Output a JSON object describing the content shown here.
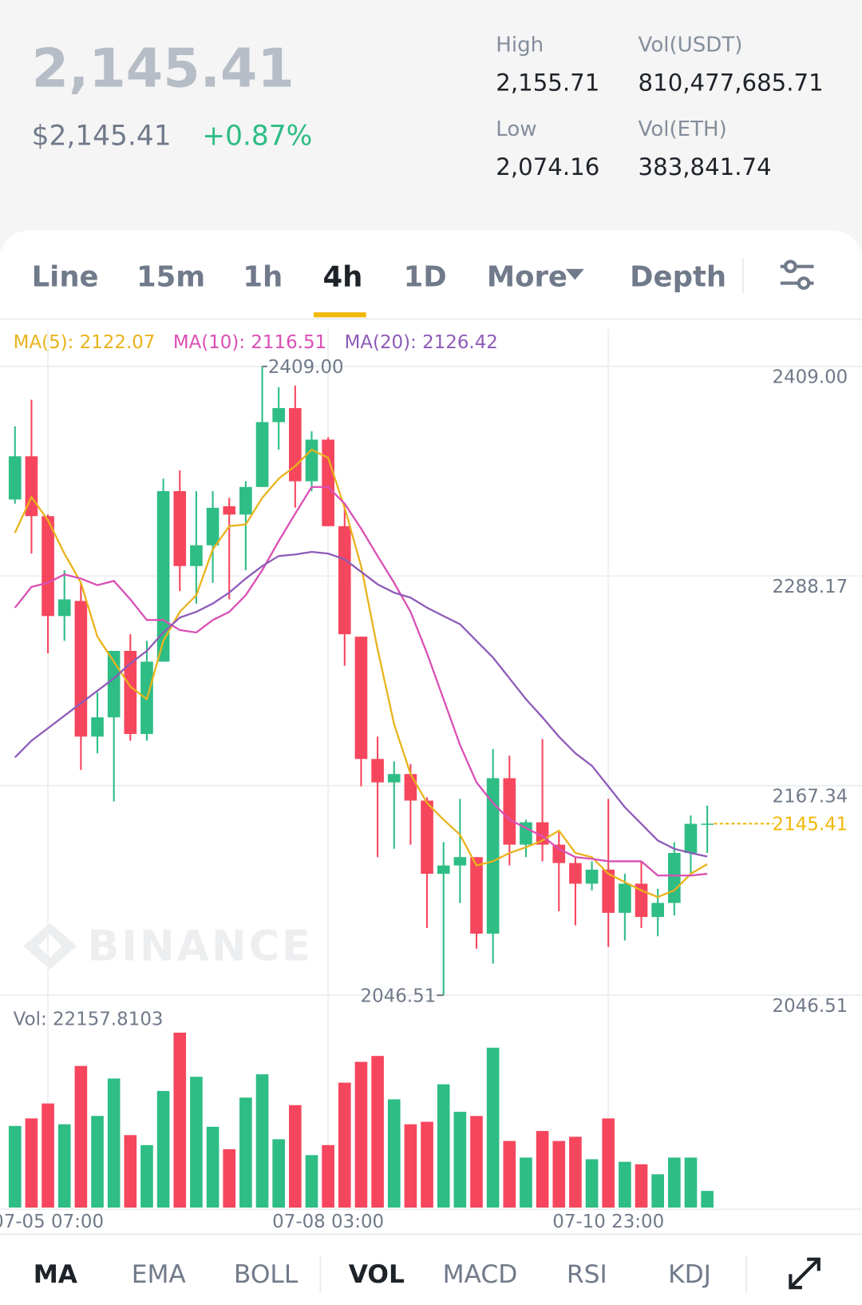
{
  "header": {
    "last_price": "2,145.41",
    "usd_price": "$2,145.41",
    "change": "+0.87%",
    "stats": [
      {
        "label": "High",
        "value": "2,155.71"
      },
      {
        "label": "Vol(USDT)",
        "value": "810,477,685.71"
      },
      {
        "label": "Low",
        "value": "2,074.16"
      },
      {
        "label": "Vol(ETH)",
        "value": "383,841.74"
      }
    ]
  },
  "tabs": [
    "Line",
    "15m",
    "1h",
    "4h",
    "1D",
    "More",
    "Depth"
  ],
  "active_tab": 3,
  "chart_data": {
    "type": "candlestick",
    "categories": [
      null,
      null,
      "07-05 07:00",
      null,
      null,
      null,
      null,
      null,
      null,
      null,
      null,
      null,
      null,
      null,
      null,
      null,
      null,
      null,
      null,
      "07-08 03:00",
      null,
      null,
      null,
      null,
      null,
      null,
      null,
      null,
      null,
      null,
      null,
      null,
      null,
      null,
      null,
      null,
      "07-10 23:00",
      null,
      null,
      null,
      null,
      null,
      null
    ],
    "open": [
      2332.3,
      2357.2,
      2322.7,
      2265.1,
      2273.8,
      2195.6,
      2206.7,
      2245.0,
      2197.1,
      2238.8,
      2337.1,
      2293.9,
      2305.9,
      2328.4,
      2323.6,
      2339.5,
      2376.9,
      2385.0,
      2342.8,
      2366.8,
      2316.9,
      2253.2,
      2182.7,
      2169.2,
      2174.0,
      2158.7,
      2116.5,
      2121.3,
      2126.1,
      2082.0,
      2171.6,
      2133.3,
      2146.2,
      2133.3,
      2122.7,
      2110.8,
      2118.9,
      2094.0,
      2110.8,
      2091.6,
      2099.7,
      2128.5,
      2145.3
    ],
    "high": [
      2374.5,
      2389.8,
      2323.6,
      2291.5,
      2284.3,
      2221.0,
      2245.0,
      2254.6,
      2250.8,
      2344.3,
      2349.1,
      2337.1,
      2337.1,
      2333.2,
      2342.8,
      2409.0,
      2397.0,
      2398.0,
      2371.6,
      2368.2,
      2329.9,
      2253.2,
      2195.6,
      2181.2,
      2179.8,
      2160.6,
      2134.7,
      2159.7,
      2126.1,
      2188.4,
      2184.6,
      2147.7,
      2194.2,
      2140.5,
      2126.1,
      2123.7,
      2159.7,
      2116.5,
      2123.7,
      2107.9,
      2134.7,
      2150.1,
      2155.8
    ],
    "low": [
      2329.9,
      2301.1,
      2243.6,
      2250.8,
      2176.4,
      2186.0,
      2158.2,
      2193.2,
      2193.2,
      2238.8,
      2279.5,
      2272.3,
      2284.3,
      2274.7,
      2291.5,
      2339.5,
      2361.0,
      2327.5,
      2337.1,
      2316.9,
      2236.4,
      2166.9,
      2126.1,
      2130.9,
      2133.3,
      2085.3,
      2046.51,
      2099.7,
      2073.3,
      2064.7,
      2121.3,
      2126.1,
      2123.7,
      2094.9,
      2086.8,
      2106.9,
      2074.3,
      2078.1,
      2085.3,
      2080.5,
      2092.5,
      2116.5,
      2128.5
    ],
    "close": [
      2357.2,
      2322.7,
      2265.1,
      2274.7,
      2195.6,
      2206.7,
      2245.0,
      2197.1,
      2238.8,
      2337.1,
      2293.9,
      2305.9,
      2327.5,
      2323.6,
      2339.5,
      2376.9,
      2385.0,
      2342.8,
      2366.8,
      2316.9,
      2254.6,
      2182.7,
      2169.2,
      2174.0,
      2158.7,
      2116.5,
      2121.3,
      2126.1,
      2082.0,
      2171.6,
      2133.3,
      2146.2,
      2133.3,
      2122.7,
      2110.8,
      2118.9,
      2094.0,
      2110.8,
      2091.6,
      2099.7,
      2128.5,
      2145.3,
      2145.41
    ],
    "volumes": [
      108600,
      118600,
      138500,
      110800,
      188400,
      121900,
      171700,
      96400,
      83100,
      155100,
      232700,
      174000,
      107500,
      77600,
      146300,
      177300,
      90900,
      136300,
      69800,
      83100,
      166200,
      193900,
      201700,
      144000,
      110800,
      114100,
      164000,
      127400,
      121900,
      212700,
      88600,
      66500,
      101900,
      88600,
      94200,
      64300,
      118600,
      60900,
      57600,
      44300,
      66500,
      66500,
      22157.8103
    ],
    "volume_name": "Vol:",
    "volume_ylim": [
      0,
      265920
    ],
    "series": [
      {
        "name": "MA(5):",
        "color": "#e9b31c",
        "values": [
          2313.1,
          2333.7,
          2320.3,
          2301.1,
          2284.3,
          2253.2,
          2238.8,
          2224.4,
          2217.2,
          2250.8,
          2267.5,
          2277.1,
          2303.5,
          2316.9,
          2317.9,
          2333.2,
          2344.3,
          2351.5,
          2361.0,
          2356.3,
          2327.5,
          2293.9,
          2246.0,
          2202.8,
          2174.0,
          2157.3,
          2147.7,
          2139.0,
          2121.3,
          2123.7,
          2128.5,
          2131.8,
          2135.7,
          2141.4,
          2128.5,
          2126.1,
          2116.5,
          2111.7,
          2106.9,
          2103.1,
          2106.9,
          2116.5,
          2122.07
        ]
      },
      {
        "name": "MA(10):",
        "color": "#d94fb4",
        "values": [
          2269.9,
          2281.9,
          2284.3,
          2289.1,
          2286.7,
          2282.9,
          2285.3,
          2274.7,
          2262.8,
          2262.8,
          2257.0,
          2255.6,
          2262.8,
          2267.5,
          2277.1,
          2291.5,
          2308.3,
          2324.1,
          2339.5,
          2339.5,
          2329.9,
          2315.5,
          2299.7,
          2284.3,
          2267.5,
          2243.6,
          2217.2,
          2190.8,
          2169.2,
          2157.3,
          2147.7,
          2142.9,
          2138.1,
          2130.9,
          2126.1,
          2125.1,
          2123.7,
          2123.7,
          2123.7,
          2115.5,
          2115.5,
          2115.5,
          2116.51
        ]
      },
      {
        "name": "MA(20):",
        "color": "#8e5bb8",
        "values": [
          2183.6,
          2193.2,
          2200.4,
          2207.6,
          2214.8,
          2222.0,
          2229.2,
          2237.8,
          2245.0,
          2255.6,
          2264.2,
          2267.5,
          2272.3,
          2278.6,
          2286.7,
          2293.9,
          2299.7,
          2300.6,
          2302.1,
          2301.1,
          2297.8,
          2290.6,
          2283.4,
          2278.6,
          2275.7,
          2269.9,
          2265.1,
          2260.4,
          2250.8,
          2241.2,
          2229.2,
          2217.2,
          2206.7,
          2195.6,
          2186.0,
          2178.8,
          2166.9,
          2154.9,
          2145.3,
          2135.7,
          2130.9,
          2128.5,
          2126.42
        ]
      }
    ],
    "ylim": [
      2046.51,
      2430.6
    ],
    "yticks": [
      {
        "value": 2409.0,
        "label": "2409.00"
      },
      {
        "value": 2288.17,
        "label": "2288.17"
      },
      {
        "value": 2167.34,
        "label": "2167.34"
      },
      {
        "value": 2046.51,
        "label": "2046.51"
      }
    ],
    "grid": true,
    "up_color": "#2ebd85",
    "down_color": "#f6465d",
    "high_label": "2409.00",
    "low_label": "2046.51",
    "last_label": "2145.41",
    "last_color": "#f0b90b",
    "watermark": "BINANCE"
  },
  "indicator_tabs": [
    "MA",
    "EMA",
    "BOLL",
    "VOL",
    "MACD",
    "RSI",
    "KDJ"
  ],
  "active_indicators": [
    0,
    3
  ]
}
